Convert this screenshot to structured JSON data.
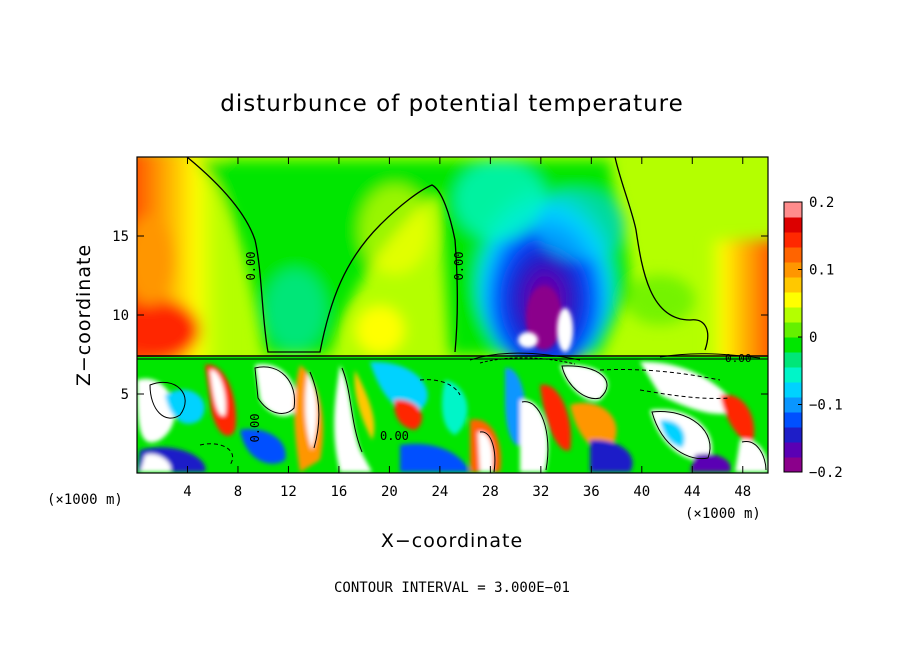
{
  "chart_data": {
    "type": "heatmap",
    "title": "disturbunce of potential temperature",
    "xlabel": "X−coordinate",
    "ylabel": "Z−coordinate",
    "x_unit": "(×1000 m)",
    "y_unit": "(×1000 m)",
    "xlim": [
      0,
      50
    ],
    "ylim": [
      0,
      20
    ],
    "x_ticks": [
      4,
      8,
      12,
      16,
      20,
      24,
      28,
      32,
      36,
      40,
      44,
      48
    ],
    "y_ticks": [
      5,
      10,
      15
    ],
    "colorbar": {
      "min": -0.2,
      "max": 0.2,
      "tick_values": [
        0.2,
        0.1,
        0,
        -0.1,
        -0.2
      ],
      "tick_labels": [
        "0.2",
        "0.1",
        "0",
        "−0.1",
        "−0.2"
      ],
      "colors": [
        "#8b008b",
        "#5a00b4",
        "#1e1ec8",
        "#0050ff",
        "#0a96ff",
        "#00d2ff",
        "#00f5c8",
        "#00e678",
        "#00e600",
        "#64f000",
        "#b4ff00",
        "#ffff00",
        "#ffc800",
        "#ff9600",
        "#ff6400",
        "#ff2800",
        "#dc0000",
        "#ff8c8c"
      ]
    },
    "contour_labels": [
      "0.00",
      "0.00",
      "0.00",
      "0.00",
      "0.00"
    ],
    "contour_interval_text": "CONTOUR INTERVAL = 3.000E−01",
    "grid": false
  }
}
